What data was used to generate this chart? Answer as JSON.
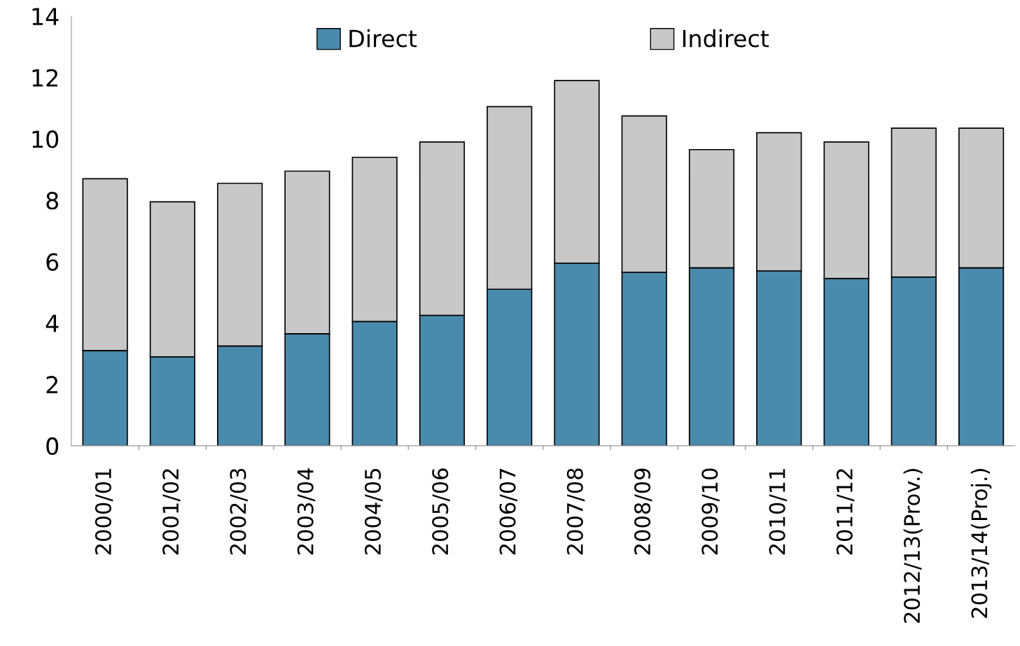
{
  "chart_data": {
    "type": "bar",
    "stacked": true,
    "categories": [
      "2000/01",
      "2001/02",
      "2002/03",
      "2003/04",
      "2004/05",
      "2005/06",
      "2006/07",
      "2007/08",
      "2008/09",
      "2009/10",
      "2010/11",
      "2011/12",
      "2012/13(Prov.)",
      "2013/14(Proj.)"
    ],
    "series": [
      {
        "name": "Direct",
        "color": "#4a8aad",
        "values": [
          3.1,
          2.9,
          3.25,
          3.65,
          4.05,
          4.25,
          5.1,
          5.95,
          5.65,
          5.8,
          5.7,
          5.45,
          5.5,
          5.8
        ]
      },
      {
        "name": "Indirect",
        "color": "#c8c8c8",
        "values": [
          5.6,
          5.05,
          5.3,
          5.3,
          5.35,
          5.65,
          5.95,
          5.95,
          5.1,
          3.85,
          4.5,
          4.45,
          4.85,
          4.55
        ]
      }
    ],
    "ylim": [
      0,
      14
    ],
    "yticks": [
      0,
      2,
      4,
      6,
      8,
      10,
      12,
      14
    ],
    "grid": false,
    "legend": "top"
  }
}
